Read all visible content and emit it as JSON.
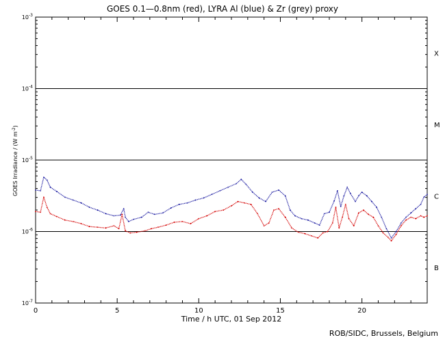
{
  "chart_data": {
    "type": "line",
    "title": "GOES 0.1—0.8nm (red), LYRA Al (blue) & Zr (grey) proxy",
    "xlabel": "Time / h UTC, 01 Sep 2012",
    "ylabel_main": "GOES Irradiance / (W m",
    "ylabel_sup": "-2",
    "ylabel_end": ")",
    "xlim": [
      0,
      24
    ],
    "ylim_log10": [
      -7,
      -3
    ],
    "x_ticks": [
      0,
      5,
      10,
      15,
      20
    ],
    "y_ticks": [
      {
        "base": "10",
        "exp": "-3",
        "value": -3
      },
      {
        "base": "10",
        "exp": "-4",
        "value": -4
      },
      {
        "base": "10",
        "exp": "-5",
        "value": -5
      },
      {
        "base": "10",
        "exp": "-6",
        "value": -6
      },
      {
        "base": "10",
        "exp": "-7",
        "value": -7
      }
    ],
    "flare_classes": [
      {
        "label": "X",
        "value": -3.5
      },
      {
        "label": "M",
        "value": -4.5
      },
      {
        "label": "C",
        "value": -5.5
      },
      {
        "label": "B",
        "value": -6.5
      }
    ],
    "threshold_lines": [
      -4,
      -5,
      -6
    ],
    "series": [
      {
        "name": "LYRA Al proxy",
        "color": "#1a1aa0",
        "points": [
          [
            0.0,
            -5.42
          ],
          [
            0.3,
            -5.43
          ],
          [
            0.5,
            -5.24
          ],
          [
            0.7,
            -5.28
          ],
          [
            0.9,
            -5.38
          ],
          [
            1.3,
            -5.44
          ],
          [
            1.8,
            -5.52
          ],
          [
            2.3,
            -5.56
          ],
          [
            2.8,
            -5.6
          ],
          [
            3.3,
            -5.66
          ],
          [
            3.8,
            -5.7
          ],
          [
            4.3,
            -5.75
          ],
          [
            4.8,
            -5.78
          ],
          [
            5.2,
            -5.77
          ],
          [
            5.4,
            -5.68
          ],
          [
            5.5,
            -5.8
          ],
          [
            5.7,
            -5.86
          ],
          [
            6.0,
            -5.83
          ],
          [
            6.5,
            -5.8
          ],
          [
            6.9,
            -5.73
          ],
          [
            7.3,
            -5.76
          ],
          [
            7.8,
            -5.74
          ],
          [
            8.3,
            -5.67
          ],
          [
            8.8,
            -5.62
          ],
          [
            9.3,
            -5.6
          ],
          [
            9.8,
            -5.56
          ],
          [
            10.3,
            -5.53
          ],
          [
            10.8,
            -5.48
          ],
          [
            11.3,
            -5.43
          ],
          [
            11.8,
            -5.38
          ],
          [
            12.3,
            -5.33
          ],
          [
            12.6,
            -5.27
          ],
          [
            12.9,
            -5.34
          ],
          [
            13.3,
            -5.45
          ],
          [
            13.7,
            -5.53
          ],
          [
            14.1,
            -5.58
          ],
          [
            14.5,
            -5.45
          ],
          [
            14.9,
            -5.42
          ],
          [
            15.3,
            -5.5
          ],
          [
            15.6,
            -5.7
          ],
          [
            15.9,
            -5.78
          ],
          [
            16.3,
            -5.82
          ],
          [
            16.7,
            -5.84
          ],
          [
            17.1,
            -5.88
          ],
          [
            17.4,
            -5.91
          ],
          [
            17.7,
            -5.75
          ],
          [
            18.0,
            -5.73
          ],
          [
            18.3,
            -5.57
          ],
          [
            18.5,
            -5.43
          ],
          [
            18.7,
            -5.65
          ],
          [
            18.9,
            -5.5
          ],
          [
            19.1,
            -5.38
          ],
          [
            19.3,
            -5.47
          ],
          [
            19.6,
            -5.58
          ],
          [
            19.8,
            -5.5
          ],
          [
            20.0,
            -5.45
          ],
          [
            20.3,
            -5.5
          ],
          [
            20.6,
            -5.58
          ],
          [
            20.9,
            -5.66
          ],
          [
            21.2,
            -5.8
          ],
          [
            21.5,
            -5.96
          ],
          [
            21.8,
            -6.09
          ],
          [
            22.1,
            -6.0
          ],
          [
            22.4,
            -5.88
          ],
          [
            22.7,
            -5.8
          ],
          [
            23.0,
            -5.74
          ],
          [
            23.3,
            -5.68
          ],
          [
            23.6,
            -5.62
          ],
          [
            23.8,
            -5.52
          ],
          [
            24.0,
            -5.48
          ]
        ]
      },
      {
        "name": "GOES 0.1-0.8nm",
        "color": "#d40000",
        "points": [
          [
            0.0,
            -5.72
          ],
          [
            0.3,
            -5.73
          ],
          [
            0.5,
            -5.52
          ],
          [
            0.7,
            -5.66
          ],
          [
            0.9,
            -5.75
          ],
          [
            1.3,
            -5.79
          ],
          [
            1.8,
            -5.84
          ],
          [
            2.3,
            -5.86
          ],
          [
            2.8,
            -5.89
          ],
          [
            3.3,
            -5.93
          ],
          [
            3.8,
            -5.94
          ],
          [
            4.3,
            -5.95
          ],
          [
            4.8,
            -5.92
          ],
          [
            5.1,
            -5.96
          ],
          [
            5.3,
            -5.76
          ],
          [
            5.5,
            -5.99
          ],
          [
            5.8,
            -6.02
          ],
          [
            6.2,
            -6.01
          ],
          [
            6.7,
            -5.99
          ],
          [
            7.1,
            -5.96
          ],
          [
            7.5,
            -5.94
          ],
          [
            8.0,
            -5.91
          ],
          [
            8.5,
            -5.87
          ],
          [
            9.0,
            -5.86
          ],
          [
            9.5,
            -5.89
          ],
          [
            10.0,
            -5.82
          ],
          [
            10.5,
            -5.78
          ],
          [
            11.0,
            -5.72
          ],
          [
            11.5,
            -5.7
          ],
          [
            12.0,
            -5.64
          ],
          [
            12.4,
            -5.58
          ],
          [
            12.8,
            -5.6
          ],
          [
            13.2,
            -5.62
          ],
          [
            13.6,
            -5.75
          ],
          [
            14.0,
            -5.92
          ],
          [
            14.3,
            -5.88
          ],
          [
            14.6,
            -5.7
          ],
          [
            14.9,
            -5.68
          ],
          [
            15.3,
            -5.8
          ],
          [
            15.7,
            -5.95
          ],
          [
            16.1,
            -6.01
          ],
          [
            16.5,
            -6.03
          ],
          [
            16.9,
            -6.06
          ],
          [
            17.3,
            -6.09
          ],
          [
            17.6,
            -6.02
          ],
          [
            17.9,
            -6.0
          ],
          [
            18.2,
            -5.88
          ],
          [
            18.4,
            -5.66
          ],
          [
            18.6,
            -5.95
          ],
          [
            18.8,
            -5.8
          ],
          [
            19.0,
            -5.62
          ],
          [
            19.2,
            -5.82
          ],
          [
            19.5,
            -5.92
          ],
          [
            19.8,
            -5.74
          ],
          [
            20.1,
            -5.7
          ],
          [
            20.4,
            -5.76
          ],
          [
            20.7,
            -5.8
          ],
          [
            21.0,
            -5.92
          ],
          [
            21.3,
            -6.02
          ],
          [
            21.6,
            -6.08
          ],
          [
            21.8,
            -6.13
          ],
          [
            22.1,
            -6.04
          ],
          [
            22.4,
            -5.92
          ],
          [
            22.7,
            -5.84
          ],
          [
            23.0,
            -5.8
          ],
          [
            23.3,
            -5.82
          ],
          [
            23.6,
            -5.78
          ],
          [
            23.8,
            -5.8
          ],
          [
            24.0,
            -5.78
          ]
        ]
      }
    ]
  },
  "footer": "ROB/SIDC, Brussels, Belgium"
}
